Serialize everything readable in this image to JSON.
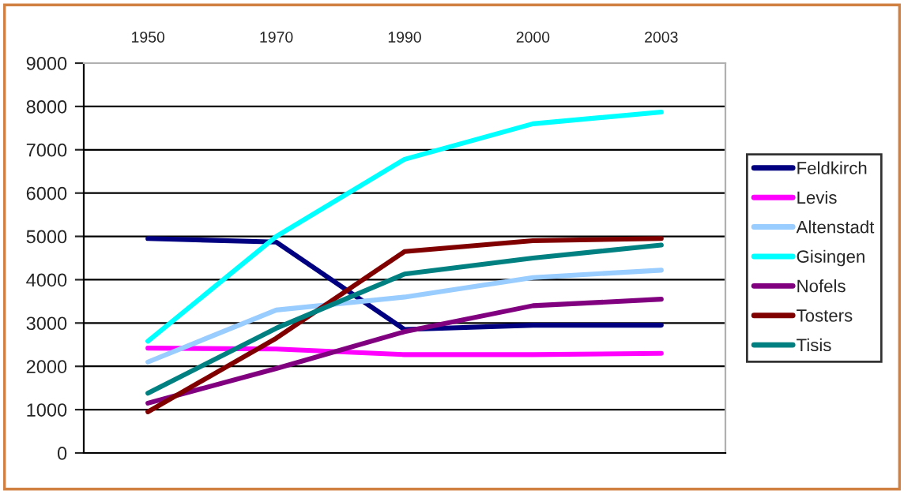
{
  "chart_data": {
    "type": "line",
    "categories": [
      "1950",
      "1970",
      "1990",
      "2000",
      "2003"
    ],
    "series": [
      {
        "name": "Feldkirch",
        "color": "#000080",
        "values": [
          4950,
          4870,
          2850,
          2950,
          2950
        ]
      },
      {
        "name": "Levis",
        "color": "#ff00ff",
        "values": [
          2420,
          2400,
          2270,
          2270,
          2300
        ]
      },
      {
        "name": "Altenstadt",
        "color": "#99ccff",
        "values": [
          2100,
          3300,
          3600,
          4050,
          4220
        ]
      },
      {
        "name": "Gisingen",
        "color": "#00ffff",
        "values": [
          2580,
          5000,
          6780,
          7600,
          7870
        ]
      },
      {
        "name": "Nofels",
        "color": "#800080",
        "values": [
          1150,
          1950,
          2800,
          3400,
          3550
        ]
      },
      {
        "name": "Tosters",
        "color": "#800000",
        "values": [
          950,
          2650,
          4650,
          4900,
          4950
        ]
      },
      {
        "name": "Tisis",
        "color": "#008080",
        "values": [
          1380,
          2880,
          4130,
          4500,
          4800
        ]
      }
    ],
    "ylim": [
      0,
      9000
    ],
    "yticks": [
      0,
      1000,
      2000,
      3000,
      4000,
      5000,
      6000,
      7000,
      8000,
      9000
    ],
    "grid": "y",
    "legend": "right",
    "marker": "none",
    "line_style": "solid"
  }
}
